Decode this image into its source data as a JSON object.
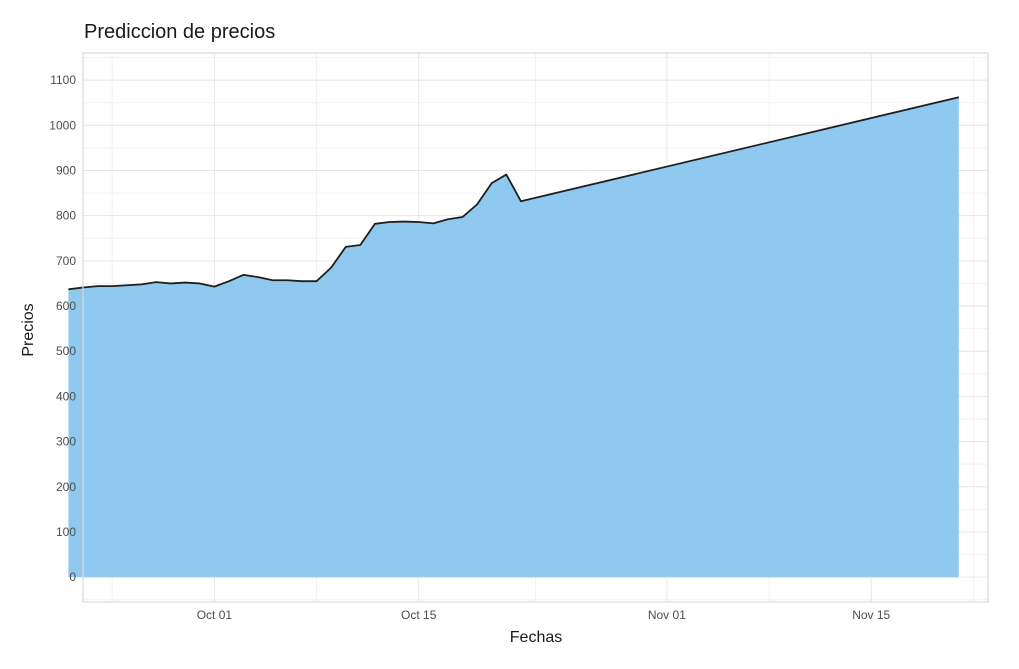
{
  "chart_data": {
    "type": "area",
    "title": "Prediccion de precios",
    "xlabel": "Fechas",
    "ylabel": "Precios",
    "x_range": [
      "2023-09-22",
      "2023-11-23"
    ],
    "ylim": [
      -55,
      1160
    ],
    "y_ticks": [
      0,
      100,
      200,
      300,
      400,
      500,
      600,
      700,
      800,
      900,
      1000,
      1100
    ],
    "x_ticks": [
      {
        "date": "2023-10-01",
        "label": "Oct 01"
      },
      {
        "date": "2023-10-15",
        "label": "Oct 15"
      },
      {
        "date": "2023-11-01",
        "label": "Nov 01"
      },
      {
        "date": "2023-11-15",
        "label": "Nov 15"
      }
    ],
    "x_minor_ticks": [
      "2023-09-24",
      "2023-10-08",
      "2023-10-23",
      "2023-11-08",
      "2023-11-22"
    ],
    "grid": true,
    "fill_color": "#8fc9ef",
    "line_color": "#1f1f1f",
    "series": [
      {
        "points": [
          {
            "x": "2023-09-21",
            "y": 637
          },
          {
            "x": "2023-09-22",
            "y": 641
          },
          {
            "x": "2023-09-23",
            "y": 644
          },
          {
            "x": "2023-09-24",
            "y": 644
          },
          {
            "x": "2023-09-25",
            "y": 646
          },
          {
            "x": "2023-09-26",
            "y": 648
          },
          {
            "x": "2023-09-27",
            "y": 653
          },
          {
            "x": "2023-09-28",
            "y": 650
          },
          {
            "x": "2023-09-29",
            "y": 652
          },
          {
            "x": "2023-09-30",
            "y": 650
          },
          {
            "x": "2023-10-01",
            "y": 643
          },
          {
            "x": "2023-10-02",
            "y": 655
          },
          {
            "x": "2023-10-03",
            "y": 669
          },
          {
            "x": "2023-10-04",
            "y": 664
          },
          {
            "x": "2023-10-05",
            "y": 657
          },
          {
            "x": "2023-10-06",
            "y": 657
          },
          {
            "x": "2023-10-07",
            "y": 655
          },
          {
            "x": "2023-10-08",
            "y": 655
          },
          {
            "x": "2023-10-09",
            "y": 685
          },
          {
            "x": "2023-10-10",
            "y": 731
          },
          {
            "x": "2023-10-11",
            "y": 735
          },
          {
            "x": "2023-10-12",
            "y": 782
          },
          {
            "x": "2023-10-13",
            "y": 786
          },
          {
            "x": "2023-10-14",
            "y": 787
          },
          {
            "x": "2023-10-15",
            "y": 786
          },
          {
            "x": "2023-10-16",
            "y": 783
          },
          {
            "x": "2023-10-17",
            "y": 792
          },
          {
            "x": "2023-10-18",
            "y": 797
          },
          {
            "x": "2023-10-19",
            "y": 825
          },
          {
            "x": "2023-10-20",
            "y": 872
          },
          {
            "x": "2023-10-21",
            "y": 891
          },
          {
            "x": "2023-10-22",
            "y": 832
          },
          {
            "x": "2023-11-21",
            "y": 1062
          }
        ]
      }
    ]
  }
}
